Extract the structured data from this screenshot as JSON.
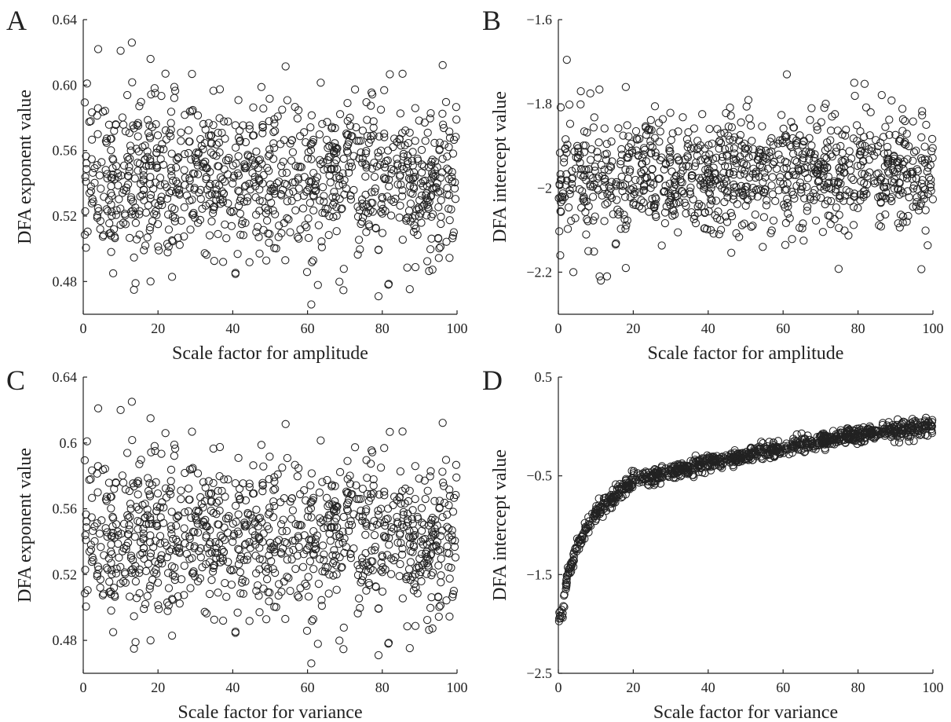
{
  "chart_data": [
    {
      "panel": "A",
      "type": "scatter",
      "xlabel": "Scale factor for amplitude",
      "ylabel": "DFA exponent value",
      "xlim": [
        0,
        100
      ],
      "ylim": [
        0.46,
        0.64
      ],
      "xticks": [
        0,
        20,
        40,
        60,
        80,
        100
      ],
      "xticklabels": [
        "0",
        "20",
        "40",
        "60",
        "80",
        "100"
      ],
      "yticks": [
        0.48,
        0.52,
        0.56,
        0.6,
        0.64
      ],
      "yticklabels": [
        "0.48",
        "0.52",
        "0.56",
        "0.60",
        "0.64"
      ],
      "marker": "open-circle",
      "grid": false,
      "n_points": 1000,
      "distribution": {
        "mean": 0.543,
        "sd": 0.025
      },
      "outliers": [
        [
          1,
          0.601
        ],
        [
          4,
          0.622
        ],
        [
          10,
          0.621
        ],
        [
          13,
          0.626
        ],
        [
          18,
          0.616
        ],
        [
          22,
          0.607
        ],
        [
          61,
          0.466
        ],
        [
          79,
          0.471
        ],
        [
          8,
          0.485
        ],
        [
          14,
          0.479
        ],
        [
          18,
          0.48
        ]
      ]
    },
    {
      "panel": "B",
      "type": "scatter",
      "xlabel": "Scale factor for amplitude",
      "ylabel": "DFA intercept value",
      "xlim": [
        0,
        100
      ],
      "ylim": [
        -2.3,
        -1.6
      ],
      "xticks": [
        0,
        20,
        40,
        60,
        80,
        100
      ],
      "xticklabels": [
        "0",
        "20",
        "40",
        "60",
        "80",
        "100"
      ],
      "yticks": [
        -2.2,
        -2.0,
        -1.8,
        -1.6
      ],
      "yticklabels": [
        "−2.2",
        "−2",
        "−1.8",
        "−1.6"
      ],
      "marker": "open-circle",
      "grid": false,
      "n_points": 1000,
      "distribution": {
        "mean": -1.97,
        "sd": 0.07
      },
      "outliers": [
        [
          61,
          -1.73
        ],
        [
          79,
          -1.75
        ],
        [
          6,
          -1.77
        ],
        [
          18,
          -1.76
        ],
        [
          4,
          -2.2
        ],
        [
          11,
          -2.21
        ],
        [
          13,
          -2.21
        ],
        [
          18,
          -2.19
        ],
        [
          0.5,
          -2.16
        ],
        [
          8,
          -2.15
        ]
      ]
    },
    {
      "panel": "C",
      "type": "scatter",
      "xlabel": "Scale factor for variance",
      "ylabel": "DFA exponent value",
      "xlim": [
        0,
        100
      ],
      "ylim": [
        0.46,
        0.64
      ],
      "xticks": [
        0,
        20,
        40,
        60,
        80,
        100
      ],
      "xticklabels": [
        "0",
        "20",
        "40",
        "60",
        "80",
        "100"
      ],
      "yticks": [
        0.48,
        0.52,
        0.56,
        0.6,
        0.64
      ],
      "yticklabels": [
        "0.48",
        "0.52",
        "0.56",
        "0.6",
        "0.64"
      ],
      "marker": "open-circle",
      "grid": false,
      "n_points": 1000,
      "distribution": {
        "mean": 0.543,
        "sd": 0.025
      },
      "outliers": [
        [
          1,
          0.601
        ],
        [
          4,
          0.621
        ],
        [
          10,
          0.62
        ],
        [
          13,
          0.625
        ],
        [
          18,
          0.615
        ],
        [
          22,
          0.606
        ],
        [
          61,
          0.466
        ],
        [
          79,
          0.471
        ],
        [
          8,
          0.485
        ],
        [
          14,
          0.479
        ],
        [
          18,
          0.48
        ]
      ]
    },
    {
      "panel": "D",
      "type": "scatter",
      "xlabel": "Scale factor for variance",
      "ylabel": "DFA intercept value",
      "xlim": [
        0,
        100
      ],
      "ylim": [
        -2.5,
        0.5
      ],
      "xticks": [
        0,
        20,
        40,
        60,
        80,
        100
      ],
      "xticklabels": [
        "0",
        "20",
        "40",
        "60",
        "80",
        "100"
      ],
      "yticks": [
        -2.5,
        -1.5,
        -0.5,
        0.5
      ],
      "yticklabels": [
        "−2.5",
        "−1.5",
        "−0.5",
        "0.5"
      ],
      "marker": "open-circle",
      "grid": false,
      "n_points": 1000,
      "trend": {
        "x": [
          1,
          2,
          5,
          10,
          20,
          40,
          60,
          80,
          100
        ],
        "y": [
          -1.95,
          -1.6,
          -1.2,
          -0.87,
          -0.55,
          -0.37,
          -0.22,
          -0.08,
          0.0
        ]
      },
      "spread_sd": 0.04
    }
  ]
}
